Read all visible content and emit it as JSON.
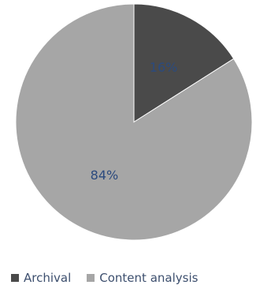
{
  "chart_data": {
    "type": "pie",
    "title": "",
    "slices": [
      {
        "label": "Archival",
        "value": 16,
        "display": "16%",
        "color": "#4a4a4a"
      },
      {
        "label": "Content analysis",
        "value": 84,
        "display": "84%",
        "color": "#a6a6a6"
      }
    ],
    "legend_position": "bottom"
  }
}
